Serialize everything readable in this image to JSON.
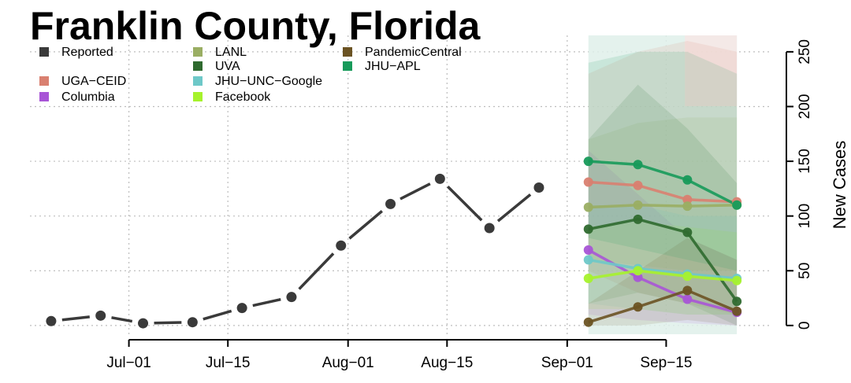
{
  "chart_data": {
    "type": "line",
    "title": "Franklin County, Florida",
    "ylabel": "New Cases",
    "xlabel": "",
    "x_ticks": [
      {
        "date": "2020-07-01",
        "label": "Jul−01"
      },
      {
        "date": "2020-07-15",
        "label": "Jul−15"
      },
      {
        "date": "2020-08-01",
        "label": "Aug−01"
      },
      {
        "date": "2020-08-15",
        "label": "Aug−15"
      },
      {
        "date": "2020-09-01",
        "label": "Sep−01"
      },
      {
        "date": "2020-09-15",
        "label": "Sep−15"
      }
    ],
    "y_ticks": [
      0,
      50,
      100,
      150,
      200,
      250
    ],
    "xlim": [
      "2020-06-17",
      "2020-09-30"
    ],
    "ylim": [
      -8,
      265
    ],
    "grid": true,
    "forecast_start": "2020-09-04",
    "reported": {
      "name": "Reported",
      "color": "#3a3a3a",
      "x": [
        "2020-06-20",
        "2020-06-27",
        "2020-07-03",
        "2020-07-10",
        "2020-07-17",
        "2020-07-24",
        "2020-07-31",
        "2020-08-07",
        "2020-08-14",
        "2020-08-21",
        "2020-08-28"
      ],
      "y": [
        4,
        9,
        2,
        3,
        16,
        26,
        73,
        111,
        134,
        89,
        126
      ]
    },
    "forecast_x": [
      "2020-09-04",
      "2020-09-11",
      "2020-09-18",
      "2020-09-25"
    ],
    "series": [
      {
        "name": "UGA−CEID",
        "color": "#d98070",
        "y": [
          131,
          128,
          115,
          113
        ],
        "lower": [
          50,
          30,
          20,
          10
        ],
        "upper": [
          230,
          250,
          260,
          250
        ]
      },
      {
        "name": "Columbia",
        "color": "#a855d6",
        "y": [
          69,
          44,
          24,
          12
        ],
        "lower": [
          10,
          5,
          2,
          0
        ],
        "upper": [
          160,
          120,
          80,
          60
        ]
      },
      {
        "name": "LANL",
        "color": "#9aae63",
        "y": [
          108,
          110,
          109,
          110
        ],
        "lower": [
          60,
          55,
          50,
          50
        ],
        "upper": [
          170,
          185,
          190,
          190
        ]
      },
      {
        "name": "UVA",
        "color": "#2f6a2f",
        "y": [
          88,
          97,
          85,
          22
        ],
        "lower": [
          20,
          30,
          20,
          0
        ],
        "upper": [
          170,
          220,
          180,
          130
        ]
      },
      {
        "name": "JHU−UNC−Google",
        "color": "#6ec8c8",
        "y": [
          60,
          52,
          47,
          43
        ],
        "lower": [
          20,
          15,
          10,
          10
        ],
        "upper": [
          110,
          110,
          100,
          100
        ]
      },
      {
        "name": "Facebook",
        "color": "#a6f22c",
        "y": [
          43,
          50,
          45,
          41
        ],
        "lower": [
          15,
          15,
          10,
          10
        ],
        "upper": [
          90,
          95,
          90,
          85
        ]
      },
      {
        "name": "PandemicCentral",
        "color": "#6b5323",
        "y": [
          3,
          17,
          32,
          13
        ],
        "lower": [
          0,
          0,
          5,
          0
        ],
        "upper": [
          20,
          50,
          80,
          60
        ]
      },
      {
        "name": "JHU−APL",
        "color": "#179a5a",
        "y": [
          150,
          147,
          133,
          110
        ],
        "lower": [
          80,
          70,
          60,
          50
        ],
        "upper": [
          240,
          250,
          250,
          230
        ]
      }
    ],
    "legend": {
      "placement": "top-left",
      "columns": [
        [
          "Reported",
          "",
          "UGA−CEID",
          "Columbia"
        ],
        [
          "LANL",
          "UVA",
          "JHU−UNC−Google",
          "Facebook"
        ],
        [
          "PandemicCentral",
          "JHU−APL"
        ]
      ]
    }
  }
}
